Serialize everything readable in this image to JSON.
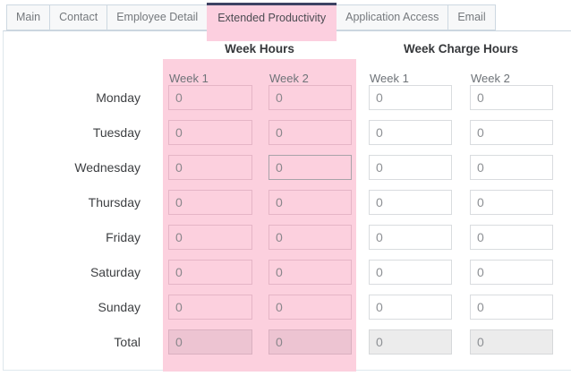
{
  "tabs": [
    {
      "label": "Main",
      "active": false
    },
    {
      "label": "Contact",
      "active": false
    },
    {
      "label": "Employee Detail",
      "active": false
    },
    {
      "label": "Extended Productivity",
      "active": true
    },
    {
      "label": "Application Access",
      "active": false
    },
    {
      "label": "Email",
      "active": false
    }
  ],
  "sections": {
    "week_hours": {
      "title": "Week Hours",
      "columns": [
        "Week 1",
        "Week 2"
      ]
    },
    "week_charge_hours": {
      "title": "Week Charge Hours",
      "columns": [
        "Week 1",
        "Week 2"
      ]
    }
  },
  "grid": {
    "rows": [
      {
        "day": "Monday",
        "week_hours": [
          "0",
          "0"
        ],
        "week_charge_hours": [
          "0",
          "0"
        ]
      },
      {
        "day": "Tuesday",
        "week_hours": [
          "0",
          "0"
        ],
        "week_charge_hours": [
          "0",
          "0"
        ]
      },
      {
        "day": "Wednesday",
        "week_hours": [
          "0",
          "0"
        ],
        "week_charge_hours": [
          "0",
          "0"
        ]
      },
      {
        "day": "Thursday",
        "week_hours": [
          "0",
          "0"
        ],
        "week_charge_hours": [
          "0",
          "0"
        ]
      },
      {
        "day": "Friday",
        "week_hours": [
          "0",
          "0"
        ],
        "week_charge_hours": [
          "0",
          "0"
        ]
      },
      {
        "day": "Saturday",
        "week_hours": [
          "0",
          "0"
        ],
        "week_charge_hours": [
          "0",
          "0"
        ]
      },
      {
        "day": "Sunday",
        "week_hours": [
          "0",
          "0"
        ],
        "week_charge_hours": [
          "0",
          "0"
        ]
      },
      {
        "day": "Total",
        "week_hours": [
          "0",
          "0"
        ],
        "week_charge_hours": [
          "0",
          "0"
        ],
        "readonly": true
      }
    ]
  },
  "colors": {
    "active_tab_bg": "#fccfdf",
    "active_tab_top_border": "#3d4263",
    "highlight_panel_pink": "#fcd0de",
    "pink_input_border": "#e5b5c6",
    "pink_total_bg": "#edc4d2",
    "disabled_total_bg": "#ececec",
    "tab_border": "#cdd8e1",
    "inactive_tab_bg": "#f7f8f9"
  }
}
